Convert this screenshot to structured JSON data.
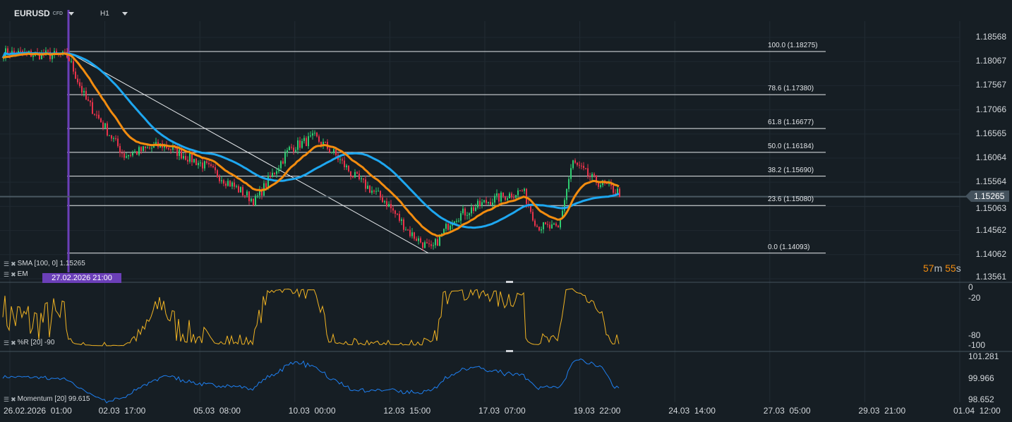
{
  "header": {
    "symbol": "EURUSD",
    "instrument_type": "CFD",
    "timeframe": "H1"
  },
  "price_axis": [
    "1.18568",
    "1.18067",
    "1.17567",
    "1.17066",
    "1.16565",
    "1.16064",
    "1.15564",
    "1.15063",
    "1.14562",
    "1.14062",
    "1.13561"
  ],
  "current_price": "1.15265",
  "countdown": {
    "minutes": "57",
    "m": "m",
    "seconds": "55",
    "s": "s"
  },
  "crosshair_date": "27.02.2026 21:00",
  "fibonacci": [
    {
      "label": "100.0 (1.18275)",
      "price": 1.18275
    },
    {
      "label": "78.6 (1.17380)",
      "price": 1.1738
    },
    {
      "label": "61.8 (1.16677)",
      "price": 1.16677
    },
    {
      "label": "50.0 (1.16184)",
      "price": 1.16184
    },
    {
      "label": "38.2 (1.15690)",
      "price": 1.1569
    },
    {
      "label": "23.6 (1.15080)",
      "price": 1.1508
    },
    {
      "label": "0.0 (1.14093)",
      "price": 1.14093
    }
  ],
  "indicators": {
    "sma": "SMA [100,  0] 1.15265",
    "ema": "EM",
    "wr": "%R [20] -90",
    "momentum": "Momentum [20] 99.615"
  },
  "wr_axis": [
    "0",
    "-20",
    "-80",
    "-100"
  ],
  "mom_axis": [
    "101.281",
    "99.966",
    "98.652"
  ],
  "time_axis": [
    "26.02.2026  01:00",
    "02.03  17:00",
    "05.03  08:00",
    "10.03  00:00",
    "12.03  15:00",
    "17.03  07:00",
    "19.03  22:00",
    "24.03  14:00",
    "27.03  05:00",
    "29.03  21:00",
    "01.04  12:00"
  ],
  "colors": {
    "bg": "#161e24",
    "up": "#2ecc71",
    "down": "#e8334a",
    "sma": "#1ea7f0",
    "ema": "#f28c0f",
    "wr": "#f0b323",
    "momentum": "#1e7ff0",
    "crosshair": "#6b3fb8"
  },
  "chart_data": {
    "type": "candlestick",
    "ylim": [
      1.13561,
      1.18568
    ],
    "close_waypoints": [
      1.1825,
      1.1818,
      1.1729,
      1.1612,
      1.1634,
      1.159,
      1.1517,
      1.1627,
      1.1649,
      1.162,
      1.1569,
      1.1517,
      1.1451,
      1.1415,
      1.1481,
      1.1517,
      1.1539,
      1.1466,
      1.1459,
      1.1598,
      1.1561,
      1.1532
    ],
    "fib_start": 1.18275,
    "fib_end": 1.14093
  }
}
